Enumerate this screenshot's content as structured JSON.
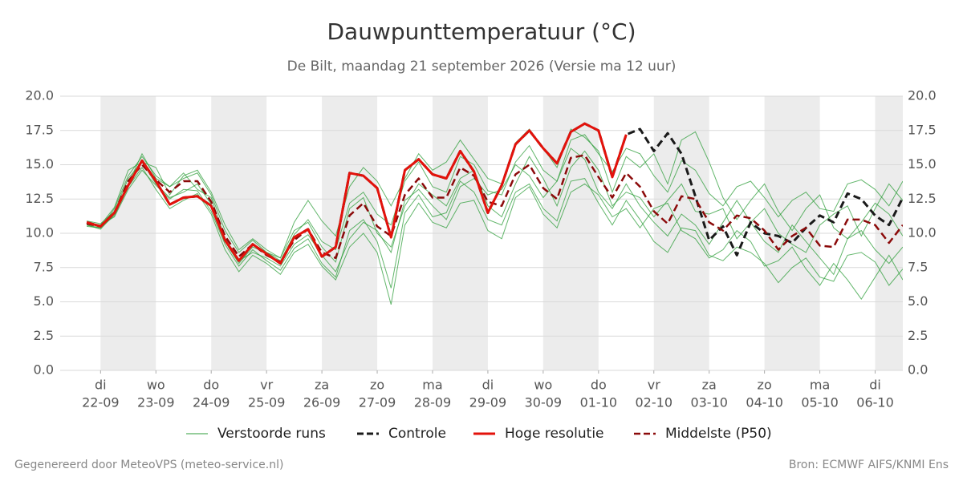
{
  "chart_data": {
    "type": "line",
    "title": "Dauwpunttemperatuur (°C)",
    "subtitle": "De Bilt, maandag 21 september 2026 (Versie ma 12 uur)",
    "footer_left": "Gegenereerd door MeteoVPS (meteo-service.nl)",
    "footer_right": "Bron: ECMWF AIFS/KNMI Ens",
    "xlim": [
      -0.73,
      14.5
    ],
    "ylim": [
      0,
      20
    ],
    "yticks": [
      {
        "value": 0,
        "label": "0.0"
      },
      {
        "value": 2.5,
        "label": "2.5"
      },
      {
        "value": 5,
        "label": "5.0"
      },
      {
        "value": 7.5,
        "label": "7.5"
      },
      {
        "value": 10,
        "label": "10.0"
      },
      {
        "value": 12.5,
        "label": "12.5"
      },
      {
        "value": 15,
        "label": "15.0"
      },
      {
        "value": 17.5,
        "label": "17.5"
      },
      {
        "value": 20,
        "label": "20.0"
      }
    ],
    "xticks": [
      {
        "value": 0,
        "label": [
          "di",
          "22-09"
        ]
      },
      {
        "value": 1,
        "label": [
          "wo",
          "23-09"
        ]
      },
      {
        "value": 2,
        "label": [
          "do",
          "24-09"
        ]
      },
      {
        "value": 3,
        "label": [
          "vr",
          "25-09"
        ]
      },
      {
        "value": 4,
        "label": [
          "za",
          "26-09"
        ]
      },
      {
        "value": 5,
        "label": [
          "zo",
          "27-09"
        ]
      },
      {
        "value": 6,
        "label": [
          "ma",
          "28-09"
        ]
      },
      {
        "value": 7,
        "label": [
          "di",
          "29-09"
        ]
      },
      {
        "value": 8,
        "label": [
          "wo",
          "30-09"
        ]
      },
      {
        "value": 9,
        "label": [
          "do",
          "01-10"
        ]
      },
      {
        "value": 10,
        "label": [
          "vr",
          "02-10"
        ]
      },
      {
        "value": 11,
        "label": [
          "za",
          "03-10"
        ]
      },
      {
        "value": 12,
        "label": [
          "zo",
          "04-10"
        ]
      },
      {
        "value": 13,
        "label": [
          "ma",
          "05-10"
        ]
      },
      {
        "value": 14,
        "label": [
          "di",
          "06-10"
        ]
      }
    ],
    "grid": true,
    "x": [
      -0.25,
      0,
      0.25,
      0.5,
      0.75,
      1,
      1.25,
      1.5,
      1.75,
      2,
      2.25,
      2.5,
      2.75,
      3,
      3.25,
      3.5,
      3.75,
      4,
      4.25,
      4.5,
      4.75,
      5,
      5.25,
      5.5,
      5.75,
      6,
      6.25,
      6.5,
      6.75,
      7,
      7.25,
      7.5,
      7.75,
      8,
      8.25,
      8.5,
      8.75,
      9,
      9.25,
      9.5,
      9.75,
      10,
      10.25,
      10.5,
      10.75,
      11,
      11.25,
      11.5,
      11.75,
      12,
      12.25,
      12.5,
      12.75,
      13,
      13.25,
      13.5,
      13.75,
      14,
      14.25,
      14.5
    ],
    "ensemble": {
      "name": "Verstoorde runs",
      "color": "#2e9e3a",
      "members": [
        [
          10.6,
          10.4,
          11.8,
          14.2,
          15.6,
          14.2,
          13.4,
          14.0,
          14.4,
          12.8,
          10.2,
          8.6,
          9.5,
          8.6,
          8.0,
          9.9,
          11.0,
          9.4,
          8.8,
          12.2,
          13.0,
          11.4,
          10.6,
          13.8,
          15.2,
          13.4,
          13.0,
          15.6,
          15.0,
          13.1,
          12.8,
          15.2,
          16.4,
          14.6,
          13.8,
          16.8,
          17.2,
          15.8,
          14.5,
          16.2,
          15.8,
          14.2,
          13.0,
          15.3,
          14.6,
          12.9,
          12.0,
          13.4,
          13.8,
          12.6,
          11.2,
          12.4,
          13.0,
          11.8,
          11.6,
          13.6,
          13.9,
          13.2,
          12.0,
          13.8
        ],
        [
          10.8,
          10.6,
          11.2,
          13.2,
          14.6,
          13.5,
          12.5,
          13.2,
          13.1,
          11.6,
          9.2,
          7.6,
          8.8,
          8.0,
          7.3,
          8.9,
          9.6,
          7.8,
          6.8,
          10.2,
          11.0,
          9.4,
          6.0,
          11.5,
          12.8,
          11.2,
          11.5,
          13.8,
          13.0,
          11.0,
          10.6,
          13.0,
          13.6,
          11.8,
          10.9,
          13.8,
          14.0,
          12.2,
          10.6,
          12.4,
          11.0,
          9.4,
          8.6,
          10.4,
          10.2,
          8.4,
          8.0,
          9.0,
          8.6,
          7.8,
          6.4,
          7.5,
          8.2,
          6.8,
          6.5,
          8.4,
          8.6,
          7.9,
          6.2,
          7.4
        ],
        [
          10.9,
          10.7,
          11.6,
          14.0,
          15.2,
          14.8,
          12.8,
          14.2,
          14.6,
          13.0,
          10.6,
          8.8,
          9.6,
          8.8,
          8.2,
          10.8,
          12.4,
          10.9,
          9.8,
          13.4,
          14.8,
          13.8,
          12.0,
          14.0,
          15.8,
          14.6,
          15.2,
          16.8,
          15.4,
          14.0,
          13.6,
          16.6,
          17.6,
          16.2,
          14.8,
          17.6,
          17.0,
          16.0,
          13.0,
          15.6,
          14.8,
          15.8,
          13.6,
          16.8,
          17.4,
          15.2,
          12.6,
          11.0,
          12.4,
          13.6,
          11.6,
          10.2,
          11.8,
          12.8,
          10.4,
          9.6,
          10.8,
          12.2,
          11.4,
          9.8
        ],
        [
          10.6,
          10.3,
          11.4,
          13.6,
          15.8,
          14.0,
          13.4,
          14.4,
          13.2,
          12.6,
          9.6,
          8.0,
          8.6,
          8.2,
          7.6,
          9.2,
          9.9,
          8.4,
          7.2,
          9.6,
          10.8,
          10.2,
          8.6,
          12.4,
          13.2,
          12.0,
          11.0,
          13.4,
          14.0,
          12.8,
          13.2,
          15.0,
          14.2,
          12.6,
          13.8,
          16.2,
          15.4,
          13.0,
          11.8,
          13.6,
          12.0,
          10.8,
          9.8,
          11.4,
          10.6,
          9.2,
          10.8,
          12.4,
          10.8,
          9.4,
          8.6,
          10.6,
          9.4,
          8.2,
          7.0,
          9.6,
          10.2,
          8.8,
          7.8,
          9.0
        ],
        [
          10.7,
          10.6,
          11.9,
          14.6,
          15.2,
          13.6,
          12.6,
          13.0,
          13.6,
          12.1,
          9.4,
          7.8,
          9.0,
          8.6,
          8.2,
          10.2,
          10.8,
          9.0,
          7.9,
          11.8,
          12.6,
          10.0,
          9.0,
          12.0,
          13.6,
          12.8,
          12.0,
          14.0,
          14.6,
          12.0,
          11.2,
          13.6,
          15.6,
          14.0,
          12.0,
          14.8,
          16.0,
          14.6,
          12.0,
          13.0,
          12.6,
          11.2,
          12.4,
          13.6,
          11.6,
          11.4,
          11.8,
          9.6,
          10.8,
          11.8,
          10.0,
          9.2,
          8.6,
          10.6,
          11.4,
          12.0,
          9.8,
          11.8,
          13.6,
          12.4
        ],
        [
          10.5,
          10.4,
          11.3,
          13.4,
          14.8,
          13.2,
          11.8,
          12.4,
          12.9,
          11.4,
          8.8,
          7.2,
          8.4,
          7.8,
          7.0,
          8.6,
          9.2,
          7.6,
          6.6,
          9.0,
          10.0,
          8.6,
          4.8,
          10.6,
          12.2,
          10.8,
          10.4,
          12.2,
          12.4,
          10.2,
          9.6,
          12.6,
          13.4,
          11.4,
          10.4,
          13.0,
          13.6,
          12.8,
          11.2,
          11.8,
          10.4,
          11.8,
          12.2,
          10.2,
          9.6,
          8.2,
          8.8,
          10.2,
          9.4,
          7.6,
          8.0,
          9.0,
          7.4,
          6.2,
          7.8,
          6.6,
          5.2,
          6.8,
          8.4,
          6.6
        ]
      ]
    },
    "series": [
      {
        "name": "Controle",
        "color": "#1a1a1a",
        "dash": true,
        "width": 3,
        "values": [
          10.8,
          10.5,
          11.5,
          13.5,
          15.3,
          13.8,
          12.1,
          12.6,
          12.7,
          12.0,
          9.5,
          8.0,
          9.2,
          8.5,
          7.8,
          9.7,
          10.3,
          8.3,
          9.0,
          14.4,
          14.2,
          13.3,
          9.7,
          14.6,
          15.4,
          14.3,
          14.0,
          16.0,
          14.5,
          11.5,
          13.5,
          16.5,
          17.5,
          16.2,
          15.1,
          17.4,
          18.0,
          17.5,
          14.1,
          17.2,
          17.6,
          16.0,
          17.3,
          15.8,
          12.7,
          9.5,
          10.5,
          8.4,
          10.8,
          10.0,
          9.8,
          9.3,
          10.4,
          11.3,
          10.8,
          12.9,
          12.5,
          11.3,
          10.6,
          12.6
        ]
      },
      {
        "name": "Hoge resolutie",
        "color": "#e3120b",
        "dash": false,
        "width": 3,
        "values": [
          10.8,
          10.5,
          11.5,
          13.5,
          15.3,
          13.8,
          12.1,
          12.6,
          12.7,
          12.0,
          9.5,
          8.0,
          9.2,
          8.5,
          7.8,
          9.7,
          10.3,
          8.3,
          9.0,
          14.4,
          14.2,
          13.3,
          9.7,
          14.6,
          15.4,
          14.3,
          14.0,
          16.0,
          14.5,
          11.5,
          13.5,
          16.5,
          17.5,
          16.2,
          15.1,
          17.4,
          18.0,
          17.5,
          14.1,
          17.2,
          null,
          null,
          null,
          null,
          null,
          null,
          null,
          null,
          null,
          null,
          null,
          null,
          null,
          null,
          null,
          null,
          null,
          null,
          null,
          null
        ]
      },
      {
        "name": "Middelste (P50)",
        "color": "#8b0a0a",
        "dash": true,
        "width": 2.5,
        "values": [
          10.7,
          10.5,
          11.5,
          13.8,
          15.0,
          13.9,
          13.0,
          13.8,
          13.8,
          12.3,
          9.8,
          8.3,
          9.2,
          8.4,
          7.9,
          9.5,
          10.3,
          8.6,
          8.2,
          11.3,
          12.2,
          10.5,
          9.8,
          12.8,
          14.0,
          12.6,
          12.6,
          14.8,
          14.2,
          12.3,
          12.0,
          14.3,
          15.0,
          13.3,
          12.5,
          15.5,
          15.7,
          14.1,
          12.6,
          14.4,
          13.4,
          11.6,
          10.7,
          12.7,
          12.5,
          10.8,
          10.2,
          11.3,
          11.1,
          10.2,
          8.8,
          9.8,
          10.4,
          9.1,
          9.0,
          11.0,
          11.0,
          10.6,
          9.3,
          10.6
        ]
      }
    ]
  }
}
